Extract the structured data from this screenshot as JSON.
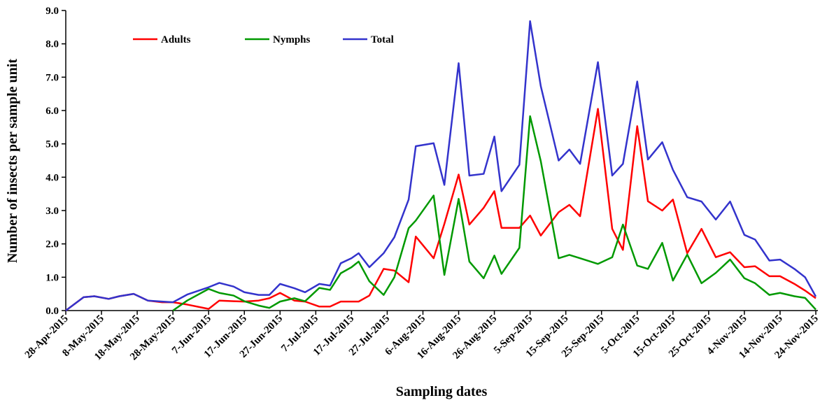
{
  "chart_data": {
    "type": "line",
    "x_label": "Sampling dates",
    "y_label": "Number of insects per sample unit",
    "x": [
      "28-Apr-2015",
      "3-May-2015",
      "6-May-2015",
      "10-May-2015",
      "13-May-2015",
      "17-May-2015",
      "21-May-2015",
      "25-May-2015",
      "28-May-2015",
      "1-Jun-2015",
      "7-Jun-2015",
      "10-Jun-2015",
      "14-Jun-2015",
      "17-Jun-2015",
      "21-Jun-2015",
      "24-Jun-2015",
      "27-Jun-2015",
      "1-Jul-2015",
      "4-Jul-2015",
      "8-Jul-2015",
      "11-Jul-2015",
      "14-Jul-2015",
      "17-Jul-2015",
      "19-Jul-2015",
      "22-Jul-2015",
      "26-Jul-2015",
      "29-Jul-2015",
      "2-Aug-2015",
      "4-Aug-2015",
      "9-Aug-2015",
      "12-Aug-2015",
      "16-Aug-2015",
      "19-Aug-2015",
      "23-Aug-2015",
      "26-Aug-2015",
      "28-Aug-2015",
      "2-Sep-2015",
      "5-Sep-2015",
      "8-Sep-2015",
      "13-Sep-2015",
      "16-Sep-2015",
      "19-Sep-2015",
      "24-Sep-2015",
      "28-Sep-2015",
      "1-Oct-2015",
      "5-Oct-2015",
      "8-Oct-2015",
      "12-Oct-2015",
      "15-Oct-2015",
      "19-Oct-2015",
      "23-Oct-2015",
      "27-Oct-2015",
      "31-Oct-2015",
      "4-Nov-2015",
      "7-Nov-2015",
      "11-Nov-2015",
      "14-Nov-2015",
      "18-Nov-2015",
      "21-Nov-2015",
      "24-Nov-2015"
    ],
    "series": [
      {
        "name": "Adults",
        "color": "#ff0000",
        "values": [
          0,
          0.4,
          0.43,
          0.35,
          0.43,
          0.5,
          0.3,
          0.25,
          0.25,
          0.18,
          0.05,
          0.3,
          0.28,
          0.27,
          0.3,
          0.37,
          0.53,
          0.3,
          0.27,
          0.12,
          0.12,
          0.27,
          0.27,
          0.27,
          0.45,
          1.25,
          1.2,
          0.85,
          2.22,
          1.57,
          2.6,
          4.08,
          2.58,
          3.08,
          3.58,
          2.48,
          2.48,
          2.85,
          2.25,
          2.95,
          3.17,
          2.83,
          6.05,
          2.45,
          1.82,
          5.53,
          3.28,
          3.0,
          3.33,
          1.72,
          2.45,
          1.6,
          1.75,
          1.3,
          1.33,
          1.03,
          1.03,
          0.8,
          0.6,
          0.37
        ]
      },
      {
        "name": "Nymphs",
        "color": "#009900",
        "values": [
          null,
          null,
          null,
          null,
          null,
          null,
          null,
          null,
          0,
          0.3,
          0.65,
          0.53,
          0.45,
          0.28,
          0.15,
          0.08,
          0.27,
          0.37,
          0.28,
          0.68,
          0.62,
          1.12,
          1.3,
          1.47,
          0.88,
          0.47,
          1.0,
          2.47,
          2.7,
          3.45,
          1.07,
          3.35,
          1.47,
          0.97,
          1.65,
          1.1,
          1.88,
          5.83,
          4.48,
          1.57,
          1.67,
          1.57,
          1.4,
          1.6,
          2.58,
          1.35,
          1.25,
          2.03,
          0.9,
          1.68,
          0.82,
          1.13,
          1.53,
          0.97,
          0.82,
          0.47,
          0.53,
          0.43,
          0.38,
          0.03
        ]
      },
      {
        "name": "Total",
        "color": "#3333cc",
        "values": [
          0,
          0.4,
          0.43,
          0.35,
          0.43,
          0.5,
          0.3,
          0.27,
          0.25,
          0.48,
          0.7,
          0.83,
          0.72,
          0.55,
          0.47,
          0.47,
          0.8,
          0.67,
          0.55,
          0.8,
          0.75,
          1.42,
          1.57,
          1.72,
          1.3,
          1.72,
          2.2,
          3.33,
          4.93,
          5.02,
          3.77,
          7.42,
          4.05,
          4.1,
          5.22,
          3.58,
          4.37,
          8.68,
          6.73,
          4.5,
          4.83,
          4.4,
          7.45,
          4.05,
          4.4,
          6.87,
          4.53,
          5.05,
          4.22,
          3.4,
          3.27,
          2.73,
          3.27,
          2.27,
          2.13,
          1.5,
          1.53,
          1.25,
          1.0,
          0.42
        ]
      }
    ],
    "xlim": [
      "28-Apr-2015",
      "24-Nov-2015"
    ],
    "xticks": [
      "28-Apr-2015",
      "8-May-2015",
      "18-May-2015",
      "28-May-2015",
      "7-Jun-2015",
      "17-Jun-2015",
      "27-Jun-2015",
      "7-Jul-2015",
      "17-Jul-2015",
      "27-Jul-2015",
      "6-Aug-2015",
      "16-Aug-2015",
      "26-Aug-2015",
      "5-Sep-2015",
      "15-Sep-2015",
      "25-Sep-2015",
      "5-Oct-2015",
      "15-Oct-2015",
      "25-Oct-2015",
      "4-Nov-2015",
      "14-Nov-2015",
      "24-Nov-2015"
    ],
    "ylim": [
      0,
      9
    ],
    "yticks": [
      {
        "value": 0,
        "label": "0.0"
      },
      {
        "value": 1,
        "label": "1.0"
      },
      {
        "value": 2,
        "label": "2.0"
      },
      {
        "value": 3,
        "label": "3.0"
      },
      {
        "value": 4,
        "label": "4.0"
      },
      {
        "value": 5,
        "label": "5.0"
      },
      {
        "value": 6,
        "label": "6.0"
      },
      {
        "value": 7,
        "label": "7.0"
      },
      {
        "value": 8,
        "label": "8.0"
      },
      {
        "value": 9,
        "label": "9.0"
      }
    ],
    "grid": false,
    "legend": "top-left"
  }
}
